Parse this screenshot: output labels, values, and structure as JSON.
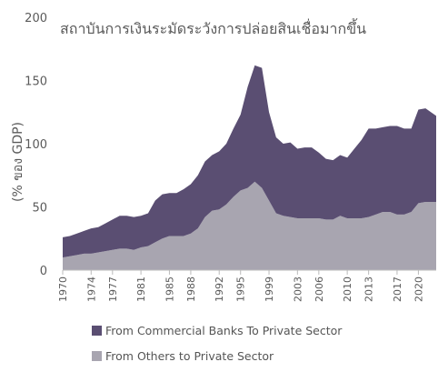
{
  "chart_data": {
    "type": "area",
    "stacked": true,
    "title": "สถาบันการเงินระมัดระวังการปล่อยสินเชื่อมากขึ้น",
    "ylabel": "(% ของ GDP)",
    "xlabel": "",
    "ylim": [
      0,
      200
    ],
    "xlim": [
      1970,
      2022.5
    ],
    "yticks": [
      0,
      50,
      100,
      150,
      200
    ],
    "xticks": [
      1970,
      1974,
      1977,
      1981,
      1985,
      1988,
      1992,
      1995,
      1999,
      2003,
      2006,
      2010,
      2013,
      2017,
      2020
    ],
    "grid": false,
    "legend_position": "bottom",
    "x": [
      1970,
      1971,
      1972,
      1973,
      1974,
      1975,
      1976,
      1977,
      1978,
      1979,
      1980,
      1981,
      1982,
      1983,
      1984,
      1985,
      1986,
      1987,
      1988,
      1989,
      1990,
      1991,
      1992,
      1993,
      1994,
      1995,
      1996,
      1997,
      1998,
      1999,
      2000,
      2001,
      2002,
      2003,
      2004,
      2005,
      2006,
      2007,
      2008,
      2009,
      2010,
      2011,
      2012,
      2013,
      2014,
      2015,
      2016,
      2017,
      2018,
      2019,
      2020,
      2021,
      2022.5
    ],
    "series": [
      {
        "name": "From Others to Private Sector",
        "color": "#a8a5b0",
        "values": [
          10,
          11,
          12,
          13,
          13,
          14,
          15,
          16,
          17,
          17,
          16,
          18,
          19,
          22,
          25,
          27,
          27,
          27,
          29,
          33,
          42,
          47,
          48,
          52,
          58,
          63,
          65,
          70,
          65,
          55,
          45,
          43,
          42,
          41,
          41,
          41,
          41,
          40,
          40,
          43,
          41,
          41,
          41,
          42,
          44,
          46,
          46,
          44,
          44,
          46,
          53,
          54,
          54
        ]
      },
      {
        "name": "From Commercial Banks To Private Sector",
        "color": "#5a4e72",
        "values": [
          16,
          16,
          17,
          18,
          20,
          20,
          22,
          24,
          26,
          26,
          26,
          25,
          26,
          33,
          35,
          34,
          34,
          37,
          39,
          42,
          44,
          44,
          46,
          48,
          54,
          60,
          80,
          92,
          95,
          70,
          60,
          57,
          59,
          55,
          56,
          56,
          52,
          48,
          47,
          48,
          48,
          55,
          62,
          70,
          68,
          67,
          68,
          70,
          68,
          66,
          74,
          74,
          68
        ]
      }
    ],
    "legend": [
      "From Commercial Banks To Private Sector",
      "From Others to Private Sector"
    ]
  }
}
